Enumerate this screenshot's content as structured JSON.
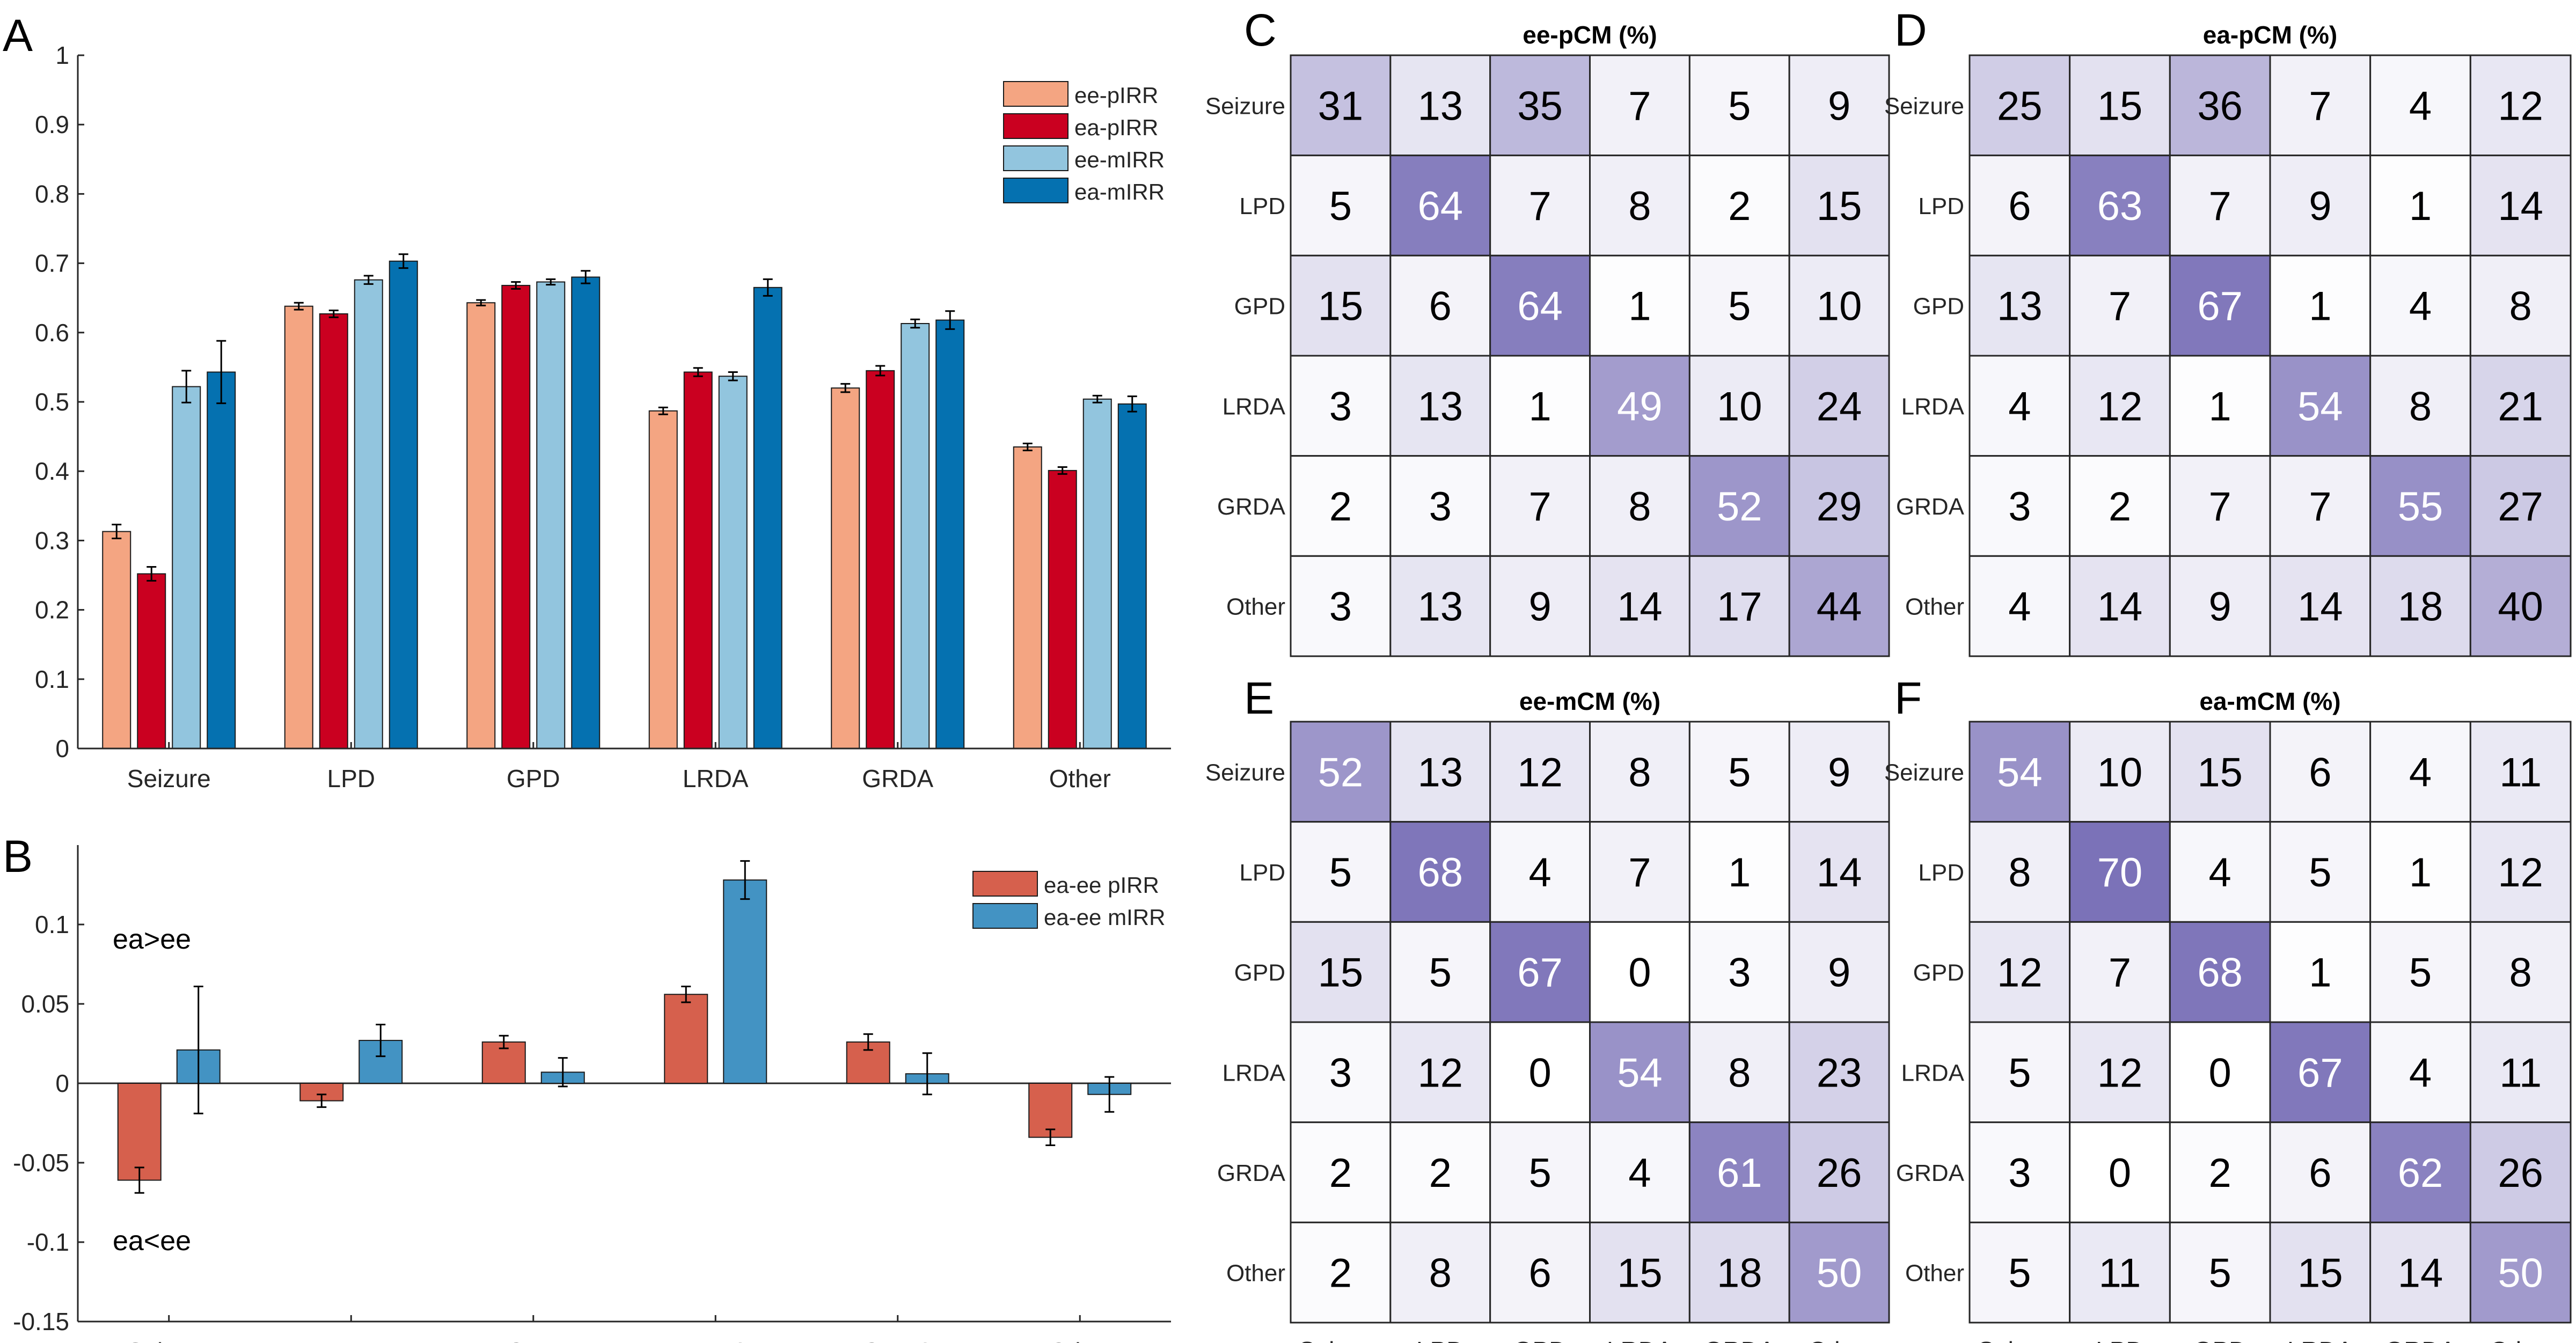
{
  "panel_letters": {
    "A": "A",
    "B": "B",
    "C": "C",
    "D": "D",
    "E": "E",
    "F": "F"
  },
  "colors": {
    "ee_pIRR": "#F4A582",
    "ea_pIRR": "#CA0020",
    "ee_mIRR": "#92C5DE",
    "ea_mIRR": "#0571B0",
    "diff_pIRR": "#D6604D",
    "diff_mIRR": "#4393C3",
    "cm_low": "#FFFFFF",
    "cm_high": "#7B72B8"
  },
  "chart_data": [
    {
      "panel": "A",
      "type": "bar",
      "categories": [
        "Seizure",
        "LPD",
        "GPD",
        "LRDA",
        "GRDA",
        "Other"
      ],
      "ylim": [
        0,
        1
      ],
      "yticks": [
        0,
        0.1,
        0.2,
        0.3,
        0.4,
        0.5,
        0.6,
        0.7,
        0.8,
        0.9,
        1
      ],
      "ytick_labels": [
        "0",
        "0.1",
        "0.2",
        "0.3",
        "0.4",
        "0.5",
        "0.6",
        "0.7",
        "0.8",
        "0.9",
        "1"
      ],
      "legend_position": "top-right",
      "series": [
        {
          "name": "ee-pIRR",
          "values": [
            0.313,
            0.638,
            0.643,
            0.487,
            0.52,
            0.435
          ],
          "errors": [
            0.01,
            0.005,
            0.004,
            0.005,
            0.006,
            0.005
          ]
        },
        {
          "name": "ea-pIRR",
          "values": [
            0.252,
            0.627,
            0.668,
            0.543,
            0.545,
            0.401
          ],
          "errors": [
            0.01,
            0.005,
            0.005,
            0.006,
            0.007,
            0.005
          ]
        },
        {
          "name": "ee-mIRR",
          "values": [
            0.522,
            0.676,
            0.673,
            0.537,
            0.613,
            0.504
          ],
          "errors": [
            0.023,
            0.006,
            0.004,
            0.006,
            0.006,
            0.005
          ]
        },
        {
          "name": "ea-mIRR",
          "values": [
            0.543,
            0.703,
            0.68,
            0.665,
            0.618,
            0.497
          ],
          "errors": [
            0.045,
            0.01,
            0.009,
            0.012,
            0.013,
            0.011
          ]
        }
      ]
    },
    {
      "panel": "B",
      "type": "bar",
      "categories": [
        "Seizure",
        "LPD",
        "GPD",
        "LRDA",
        "GRDA",
        "Other"
      ],
      "ylim": [
        -0.15,
        0.15
      ],
      "yticks": [
        -0.15,
        -0.1,
        -0.05,
        0,
        0.05,
        0.1
      ],
      "ytick_labels": [
        "-0.15",
        "-0.1",
        "-0.05",
        "0",
        "0.05",
        "0.1"
      ],
      "annotations": [
        "ea>ee",
        "ea<ee"
      ],
      "legend_position": "top-right",
      "series": [
        {
          "name": "ea-ee pIRR",
          "values": [
            -0.061,
            -0.011,
            0.026,
            0.056,
            0.026,
            -0.034
          ],
          "errors": [
            0.008,
            0.004,
            0.004,
            0.005,
            0.005,
            0.005
          ]
        },
        {
          "name": "ea-ee mIRR",
          "values": [
            0.021,
            0.027,
            0.007,
            0.128,
            0.006,
            -0.007
          ],
          "errors": [
            0.04,
            0.01,
            0.009,
            0.012,
            0.013,
            0.011
          ]
        }
      ]
    },
    {
      "panel": "C",
      "type": "heatmap",
      "title": "ee-pCM (%)",
      "rows": [
        "Seizure",
        "LPD",
        "GPD",
        "LRDA",
        "GRDA",
        "Other"
      ],
      "cols": [
        "Seizure",
        "LPD",
        "GPD",
        "LRDA",
        "GRDA",
        "Other"
      ],
      "show_col_labels": false,
      "values": [
        [
          31,
          13,
          35,
          7,
          5,
          9
        ],
        [
          5,
          64,
          7,
          8,
          2,
          15
        ],
        [
          15,
          6,
          64,
          1,
          5,
          10
        ],
        [
          3,
          13,
          1,
          49,
          10,
          24
        ],
        [
          2,
          3,
          7,
          8,
          52,
          29
        ],
        [
          3,
          13,
          9,
          14,
          17,
          44
        ]
      ]
    },
    {
      "panel": "D",
      "type": "heatmap",
      "title": "ea-pCM (%)",
      "rows": [
        "Seizure",
        "LPD",
        "GPD",
        "LRDA",
        "GRDA",
        "Other"
      ],
      "cols": [
        "Seizure",
        "LPD",
        "GPD",
        "LRDA",
        "GRDA",
        "Other"
      ],
      "show_col_labels": false,
      "values": [
        [
          25,
          15,
          36,
          7,
          4,
          12
        ],
        [
          6,
          63,
          7,
          9,
          1,
          14
        ],
        [
          13,
          7,
          67,
          1,
          4,
          8
        ],
        [
          4,
          12,
          1,
          54,
          8,
          21
        ],
        [
          3,
          2,
          7,
          7,
          55,
          27
        ],
        [
          4,
          14,
          9,
          14,
          18,
          40
        ]
      ]
    },
    {
      "panel": "E",
      "type": "heatmap",
      "title": "ee-mCM (%)",
      "rows": [
        "Seizure",
        "LPD",
        "GPD",
        "LRDA",
        "GRDA",
        "Other"
      ],
      "cols": [
        "Seizure",
        "LPD",
        "GPD",
        "LRDA",
        "GRDA",
        "Other"
      ],
      "show_col_labels": true,
      "values": [
        [
          52,
          13,
          12,
          8,
          5,
          9
        ],
        [
          5,
          68,
          4,
          7,
          1,
          14
        ],
        [
          15,
          5,
          67,
          0,
          3,
          9
        ],
        [
          3,
          12,
          0,
          54,
          8,
          23
        ],
        [
          2,
          2,
          5,
          4,
          61,
          26
        ],
        [
          2,
          8,
          6,
          15,
          18,
          50
        ]
      ]
    },
    {
      "panel": "F",
      "type": "heatmap",
      "title": "ea-mCM (%)",
      "rows": [
        "Seizure",
        "LPD",
        "GPD",
        "LRDA",
        "GRDA",
        "Other"
      ],
      "cols": [
        "Seizure",
        "LPD",
        "GPD",
        "LRDA",
        "GRDA",
        "Other"
      ],
      "show_col_labels": true,
      "values": [
        [
          54,
          10,
          15,
          6,
          4,
          11
        ],
        [
          8,
          70,
          4,
          5,
          1,
          12
        ],
        [
          12,
          7,
          68,
          1,
          5,
          8
        ],
        [
          5,
          12,
          0,
          67,
          4,
          11
        ],
        [
          3,
          0,
          2,
          6,
          62,
          26
        ],
        [
          5,
          11,
          5,
          15,
          14,
          50
        ]
      ]
    }
  ]
}
